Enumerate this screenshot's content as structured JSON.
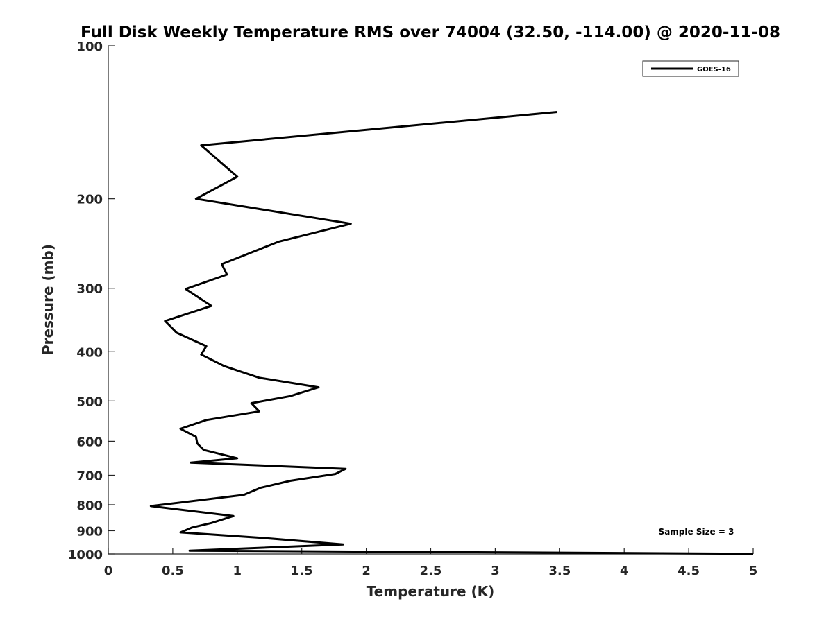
{
  "chart_data": {
    "type": "line",
    "title": "Full Disk Weekly Temperature RMS over 74004 (32.50, -114.00) @ 2020-11-08",
    "xlabel": "Temperature (K)",
    "ylabel": "Pressure (mb)",
    "xlim": [
      0,
      5
    ],
    "ylim": [
      100,
      1000
    ],
    "y_scale": "log",
    "y_reversed": true,
    "x_ticks": [
      "0",
      "0.5",
      "1",
      "1.5",
      "2",
      "2.5",
      "3",
      "3.5",
      "4",
      "4.5",
      "5"
    ],
    "y_ticks": [
      "100",
      "200",
      "300",
      "400",
      "500",
      "600",
      "700",
      "800",
      "900",
      "1000"
    ],
    "grid": false,
    "legend_position": "top-right",
    "annotation": "Sample Size = 3",
    "series": [
      {
        "name": "GOES-16",
        "color": "#000000",
        "points": [
          [
            3.48,
            135
          ],
          [
            0.72,
            157
          ],
          [
            1.0,
            181
          ],
          [
            0.68,
            200
          ],
          [
            1.88,
            224
          ],
          [
            1.32,
            243
          ],
          [
            0.88,
            269
          ],
          [
            0.92,
            282
          ],
          [
            0.6,
            301
          ],
          [
            0.8,
            325
          ],
          [
            0.44,
            348
          ],
          [
            0.53,
            367
          ],
          [
            0.76,
            390
          ],
          [
            0.72,
            405
          ],
          [
            0.9,
            427
          ],
          [
            1.17,
            450
          ],
          [
            1.63,
            470
          ],
          [
            1.41,
            489
          ],
          [
            1.11,
            505
          ],
          [
            1.17,
            524
          ],
          [
            0.76,
            545
          ],
          [
            0.56,
            567
          ],
          [
            0.68,
            588
          ],
          [
            0.69,
            606
          ],
          [
            0.74,
            624
          ],
          [
            1.0,
            648
          ],
          [
            0.64,
            661
          ],
          [
            1.84,
            680
          ],
          [
            1.76,
            696
          ],
          [
            1.41,
            718
          ],
          [
            1.18,
            741
          ],
          [
            1.05,
            765
          ],
          [
            0.33,
            805
          ],
          [
            0.97,
            842
          ],
          [
            0.8,
            869
          ],
          [
            0.65,
            887
          ],
          [
            0.56,
            907
          ],
          [
            1.2,
            930
          ],
          [
            1.82,
            958
          ],
          [
            0.63,
            985
          ],
          [
            5.0,
            999
          ]
        ]
      }
    ]
  }
}
